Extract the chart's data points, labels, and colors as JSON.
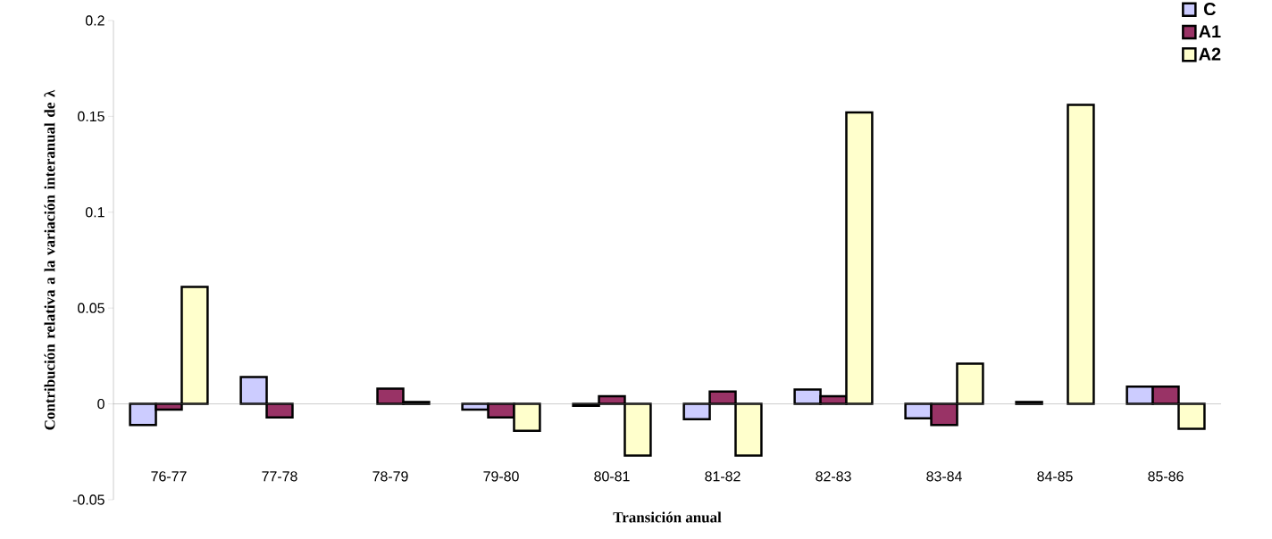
{
  "chart_data": {
    "type": "bar",
    "categories": [
      "76-77",
      "77-78",
      "78-79",
      "79-80",
      "80-81",
      "81-82",
      "82-83",
      "83-84",
      "84-85",
      "85-86"
    ],
    "series": [
      {
        "name": "C",
        "color": "#ccccff",
        "values": [
          -0.011,
          0.014,
          null,
          -0.003,
          -0.001,
          -0.008,
          0.0075,
          -0.0075,
          0.001,
          0.009
        ]
      },
      {
        "name": "A1",
        "color": "#993366",
        "values": [
          -0.003,
          -0.007,
          0.008,
          -0.007,
          0.004,
          0.0065,
          0.004,
          -0.011,
          null,
          0.009
        ]
      },
      {
        "name": "A2",
        "color": "#ffffcc",
        "values": [
          0.061,
          null,
          0.001,
          -0.014,
          -0.027,
          -0.027,
          0.152,
          0.021,
          0.156,
          -0.013
        ]
      }
    ],
    "ylim": [
      -0.05,
      0.2
    ],
    "yticks": [
      -0.05,
      0,
      0.05,
      0.1,
      0.15,
      0.2
    ],
    "xlabel": "Transición anual",
    "ylabel": "Contribución relativa a la variación interanual de λ",
    "legend": "top right"
  }
}
